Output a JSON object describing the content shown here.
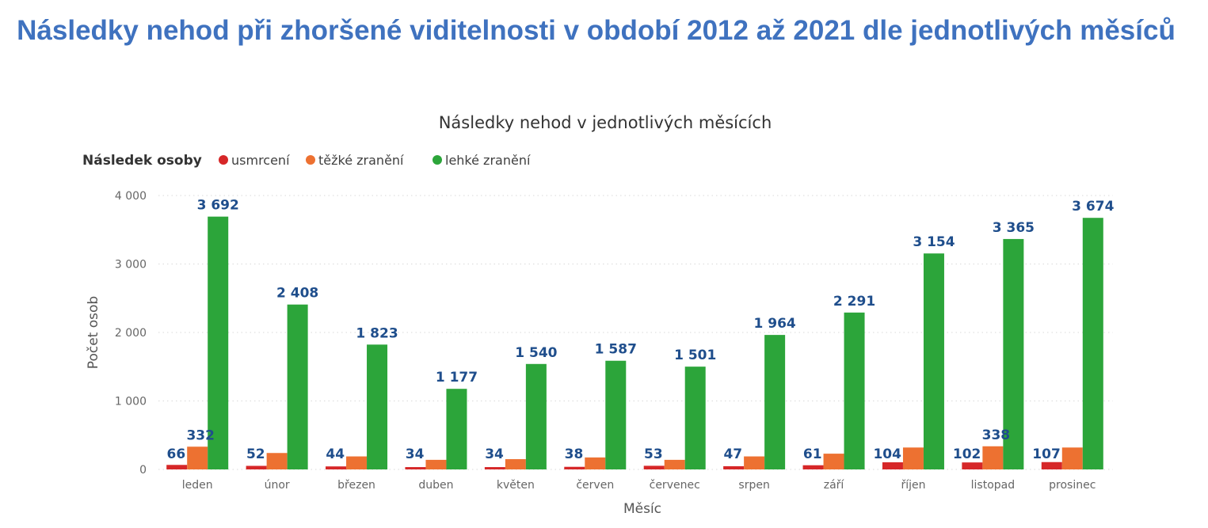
{
  "page": {
    "title": "Následky nehod při zhoršené viditelnosti v období 2012 až 2021 dle jednotlivých měsíců"
  },
  "chart_data": {
    "type": "bar",
    "title": "Následky nehod v jednotlivých měsících",
    "legend_title": "Následek osoby",
    "legend_position": "top-left",
    "xlabel": "Měsíc",
    "ylabel": "Počet osob",
    "ylim": [
      0,
      4000
    ],
    "yticks": [
      0,
      1000,
      2000,
      3000,
      4000
    ],
    "ytick_labels": [
      "0",
      "1 000",
      "2 000",
      "3 000",
      "4 000"
    ],
    "grid": true,
    "categories": [
      "leden",
      "únor",
      "březen",
      "duben",
      "květen",
      "červen",
      "červenec",
      "srpen",
      "září",
      "říjen",
      "listopad",
      "prosinec"
    ],
    "series": [
      {
        "name": "usmrcení",
        "color": "#d62728",
        "values": [
          66,
          52,
          44,
          34,
          34,
          38,
          53,
          47,
          61,
          104,
          102,
          107
        ],
        "labels": [
          "66",
          "52",
          "44",
          "34",
          "34",
          "38",
          "53",
          "47",
          "61",
          "104",
          "102",
          "107"
        ]
      },
      {
        "name": "těžké zranění",
        "color": "#ed7131",
        "values": [
          332,
          240,
          190,
          140,
          150,
          175,
          140,
          190,
          230,
          320,
          338,
          320
        ],
        "labels": [
          "332",
          null,
          null,
          null,
          null,
          null,
          null,
          null,
          null,
          null,
          "338",
          null
        ]
      },
      {
        "name": "lehké zranění",
        "color": "#2ca53a",
        "values": [
          3692,
          2408,
          1823,
          1177,
          1540,
          1587,
          1501,
          1964,
          2291,
          3154,
          3365,
          3674
        ],
        "labels": [
          "3 692",
          "2 408",
          "1 823",
          "1 177",
          "1 540",
          "1 587",
          "1 501",
          "1 964",
          "2 291",
          "3 154",
          "3 365",
          "3 674"
        ]
      }
    ]
  }
}
